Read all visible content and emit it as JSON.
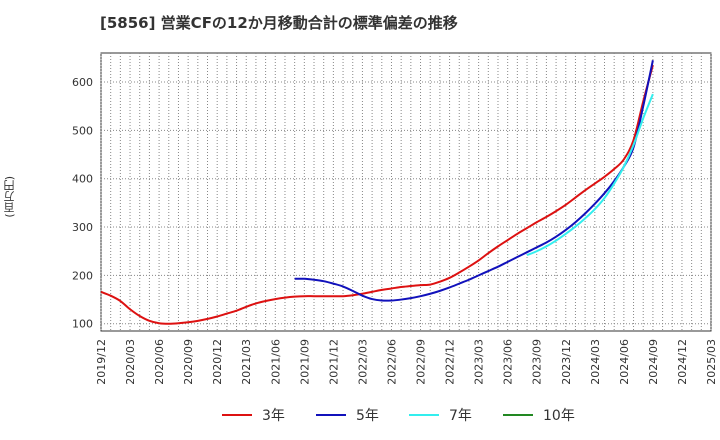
{
  "title": "[5856]  営業CFの12か月移動合計の標準偏差の推移",
  "chart_data": {
    "type": "line",
    "title": "[5856]  営業CFの12か月移動合計の標準偏差の推移",
    "ylabel": "(百万円)",
    "xlabel": "",
    "ylim": [
      85,
      660
    ],
    "y_ticks": [
      100,
      200,
      300,
      400,
      500,
      600
    ],
    "x_ticks": [
      "2019/12",
      "2020/03",
      "2020/06",
      "2020/09",
      "2020/12",
      "2021/03",
      "2021/06",
      "2021/09",
      "2021/12",
      "2022/03",
      "2022/06",
      "2022/09",
      "2022/12",
      "2023/03",
      "2023/06",
      "2023/09",
      "2023/12",
      "2024/03",
      "2024/06",
      "2024/09",
      "2024/12",
      "2025/03"
    ],
    "grid": true,
    "legend_position": "bottom",
    "series": [
      {
        "name": "3年",
        "color": "#dd1111",
        "x": [
          "2019/12",
          "2020/01",
          "2020/02",
          "2020/03",
          "2020/04",
          "2020/05",
          "2020/06",
          "2020/07",
          "2020/08",
          "2020/09",
          "2020/10",
          "2020/11",
          "2020/12",
          "2021/01",
          "2021/02",
          "2021/03",
          "2021/04",
          "2021/05",
          "2021/06",
          "2021/07",
          "2021/08",
          "2021/09",
          "2021/10",
          "2021/11",
          "2021/12",
          "2022/01",
          "2022/02",
          "2022/03",
          "2022/04",
          "2022/05",
          "2022/06",
          "2022/07",
          "2022/08",
          "2022/09",
          "2022/10",
          "2022/11",
          "2022/12",
          "2023/01",
          "2023/02",
          "2023/03",
          "2023/04",
          "2023/05",
          "2023/06",
          "2023/07",
          "2023/08",
          "2023/09",
          "2023/10",
          "2023/11",
          "2023/12",
          "2024/01",
          "2024/02",
          "2024/03",
          "2024/04",
          "2024/05",
          "2024/06",
          "2024/07",
          "2024/08",
          "2024/09"
        ],
        "values": [
          166,
          158,
          147,
          130,
          116,
          106,
          101,
          100,
          101,
          103,
          106,
          110,
          115,
          121,
          127,
          135,
          142,
          147,
          151,
          154,
          156,
          157,
          157,
          157,
          157,
          157,
          159,
          162,
          166,
          170,
          173,
          176,
          178,
          180,
          181,
          187,
          195,
          206,
          218,
          231,
          246,
          260,
          273,
          286,
          298,
          310,
          321,
          333,
          346,
          361,
          376,
          390,
          404,
          420,
          440,
          480,
          560,
          635
        ]
      },
      {
        "name": "5年",
        "color": "#1111bb",
        "x": [
          "2021/08",
          "2021/09",
          "2021/10",
          "2021/11",
          "2021/12",
          "2022/01",
          "2022/02",
          "2022/03",
          "2022/04",
          "2022/05",
          "2022/06",
          "2022/07",
          "2022/08",
          "2022/09",
          "2022/10",
          "2022/11",
          "2022/12",
          "2023/01",
          "2023/02",
          "2023/03",
          "2023/04",
          "2023/05",
          "2023/06",
          "2023/07",
          "2023/08",
          "2023/09",
          "2023/10",
          "2023/11",
          "2023/12",
          "2024/01",
          "2024/02",
          "2024/03",
          "2024/04",
          "2024/05",
          "2024/06",
          "2024/07",
          "2024/08",
          "2024/09"
        ],
        "values": [
          193,
          193,
          191,
          188,
          183,
          177,
          168,
          158,
          151,
          148,
          148,
          150,
          153,
          157,
          162,
          168,
          175,
          183,
          191,
          200,
          209,
          218,
          228,
          238,
          248,
          258,
          268,
          280,
          294,
          310,
          328,
          348,
          370,
          395,
          425,
          465,
          550,
          645
        ]
      },
      {
        "name": "7年",
        "color": "#33eeee",
        "x": [
          "2023/08",
          "2023/09",
          "2023/10",
          "2023/11",
          "2023/12",
          "2024/01",
          "2024/02",
          "2024/03",
          "2024/04",
          "2024/05",
          "2024/06",
          "2024/07",
          "2024/08",
          "2024/09"
        ],
        "values": [
          242,
          250,
          260,
          272,
          286,
          301,
          318,
          337,
          360,
          390,
          425,
          470,
          525,
          575
        ]
      },
      {
        "name": "10年",
        "color": "#228822",
        "x": [],
        "values": []
      }
    ]
  }
}
